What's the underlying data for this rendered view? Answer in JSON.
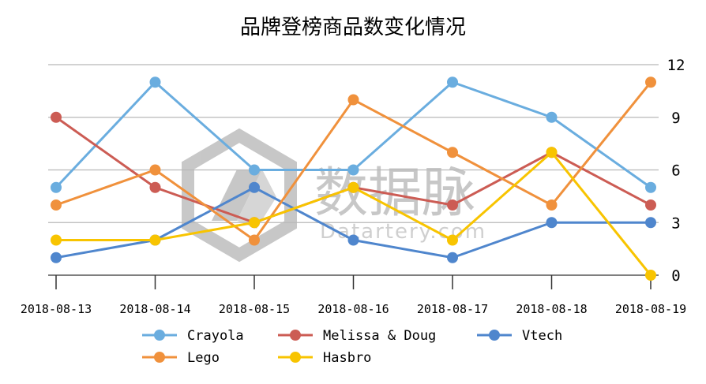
{
  "chart_data": {
    "type": "line",
    "title": "品牌登榜商品数变化情况",
    "categories": [
      "2018-08-13",
      "2018-08-14",
      "2018-08-15",
      "2018-08-16",
      "2018-08-17",
      "2018-08-18",
      "2018-08-19"
    ],
    "ylim": [
      0,
      12
    ],
    "yticks": [
      0,
      3,
      6,
      9,
      12
    ],
    "y_axis_side": "right",
    "grid": true,
    "legend_position": "bottom",
    "series": [
      {
        "name": "Crayola",
        "color": "#6aaddf",
        "values": [
          5,
          11,
          6,
          6,
          11,
          9,
          5
        ]
      },
      {
        "name": "Melissa & Doug",
        "color": "#cc5c54",
        "values": [
          9,
          5,
          3,
          5,
          4,
          7,
          4
        ]
      },
      {
        "name": "Vtech",
        "color": "#4f86cd",
        "values": [
          1,
          2,
          5,
          2,
          1,
          3,
          3
        ]
      },
      {
        "name": "Lego",
        "color": "#f0913c",
        "values": [
          4,
          6,
          2,
          10,
          7,
          4,
          11
        ]
      },
      {
        "name": "Hasbro",
        "color": "#f8c400",
        "values": [
          2,
          2,
          3,
          5,
          2,
          7,
          0
        ]
      }
    ]
  },
  "watermark": {
    "main": "数据脉",
    "sub": "Datartery.com"
  }
}
